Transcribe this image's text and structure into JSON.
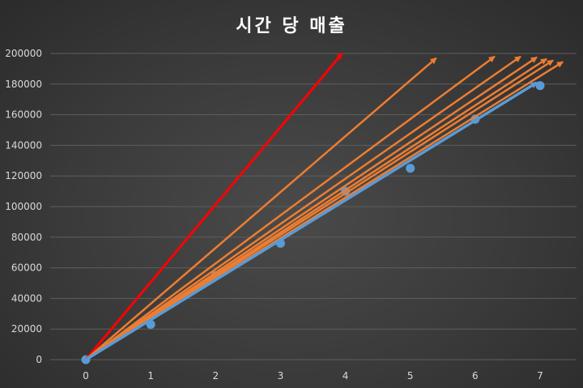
{
  "chart_data": {
    "type": "scatter",
    "title": "시간 당 매출",
    "xlabel": "",
    "ylabel": "",
    "xlim": [
      0,
      7
    ],
    "ylim": [
      0,
      200000
    ],
    "x_ticks": [
      0,
      1,
      2,
      3,
      4,
      5,
      6,
      7
    ],
    "y_ticks": [
      0,
      20000,
      40000,
      60000,
      80000,
      100000,
      120000,
      140000,
      160000,
      180000,
      200000
    ],
    "grid": true,
    "legend": "none",
    "points": {
      "color": "#5b9bd5",
      "x": [
        0,
        1,
        2,
        3,
        4,
        5,
        6,
        7
      ],
      "y": [
        0,
        23000,
        55000,
        76000,
        110000,
        125000,
        157000,
        179000
      ]
    },
    "arrows": [
      {
        "color": "#ff0000",
        "from": [
          0,
          0
        ],
        "to": [
          3.95,
          200000
        ]
      },
      {
        "color": "#ed7d31",
        "from": [
          0,
          0
        ],
        "to": [
          5.4,
          197000
        ]
      },
      {
        "color": "#ed7d31",
        "from": [
          0,
          0
        ],
        "to": [
          6.3,
          198000
        ]
      },
      {
        "color": "#ed7d31",
        "from": [
          0,
          0
        ],
        "to": [
          6.7,
          198000
        ]
      },
      {
        "color": "#ed7d31",
        "from": [
          0,
          0
        ],
        "to": [
          6.95,
          197500
        ]
      },
      {
        "color": "#ed7d31",
        "from": [
          0,
          0
        ],
        "to": [
          7.1,
          196500
        ]
      },
      {
        "color": "#ed7d31",
        "from": [
          0,
          0
        ],
        "to": [
          7.2,
          195500
        ]
      },
      {
        "color": "#ed7d31",
        "from": [
          0,
          0
        ],
        "to": [
          7.35,
          194500
        ]
      },
      {
        "color": "#5b9bd5",
        "from": [
          0,
          0
        ],
        "to": [
          6.95,
          181000
        ]
      }
    ]
  }
}
